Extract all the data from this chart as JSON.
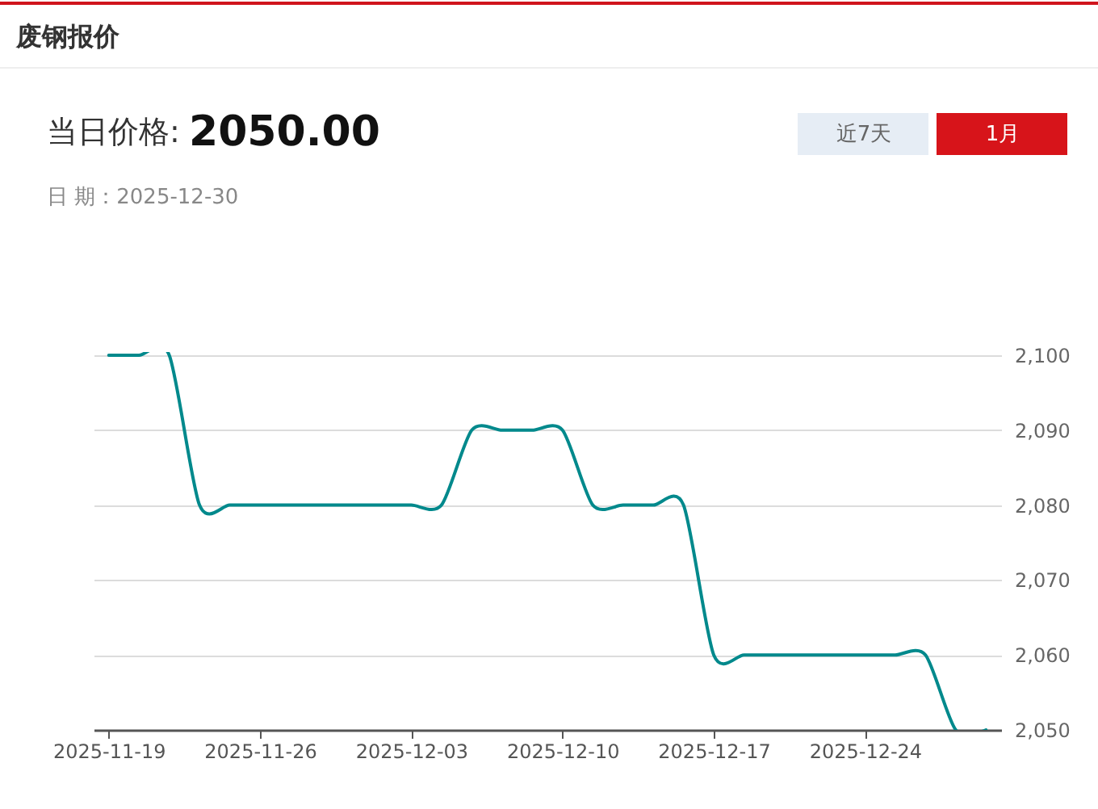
{
  "chart_data": {
    "type": "line",
    "title": "废钢报价",
    "annotations": [
      "当日价格:",
      "2050.00",
      "日 期：2025-12-30",
      "近7天",
      "1月"
    ],
    "categories": [
      "2025-11-19",
      null,
      null,
      null,
      null,
      "2025-11-26",
      null,
      null,
      null,
      null,
      "2025-12-03",
      null,
      null,
      null,
      null,
      "2025-12-10",
      null,
      null,
      null,
      null,
      "2025-12-17",
      null,
      null,
      null,
      null,
      "2025-12-24",
      null,
      null,
      null,
      null
    ],
    "series": [
      {
        "color": "#00898c",
        "values": [
          2100,
          2100,
          2100,
          2080,
          2080,
          2080,
          2080,
          2080,
          2080,
          2080,
          2080,
          2080,
          2090,
          2090,
          2090,
          2090,
          2080,
          2080,
          2080,
          2080,
          2060,
          2060,
          2060,
          2060,
          2060,
          2060,
          2060,
          2060,
          2050,
          2050
        ]
      }
    ],
    "ylim": [
      2050,
      2100
    ],
    "yticks": [
      {
        "value": 2050,
        "label": "2,050"
      },
      {
        "value": 2060,
        "label": "2,060"
      },
      {
        "value": 2070,
        "label": "2,070"
      },
      {
        "value": 2080,
        "label": "2,080"
      },
      {
        "value": 2090,
        "label": "2,090"
      },
      {
        "value": 2100,
        "label": "2,100"
      }
    ],
    "grid": "y"
  }
}
